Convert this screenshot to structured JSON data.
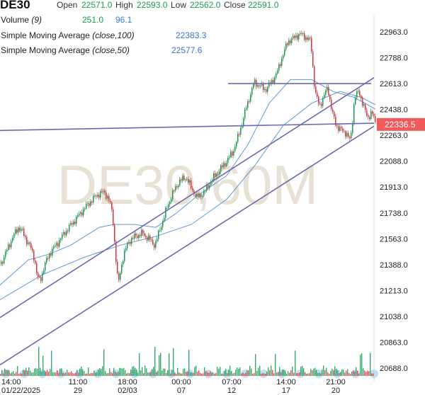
{
  "header": {
    "symbol": "DE30",
    "open_label": "Open",
    "open": "22571.0",
    "high_label": "High",
    "high": "22593.0",
    "low_label": "Low",
    "low": "22562.0",
    "close_label": "Close",
    "close": "22591.0",
    "volume_label": "Volume",
    "volume_param": "(9)",
    "volume_value": "251.0",
    "volume_ma": "96.1",
    "sma100_label": "Simple Moving Average",
    "sma100_param": "(close,100)",
    "sma100_value": "22383.3",
    "sma50_label": "Simple Moving Average",
    "sma50_param": "(close,50)",
    "sma50_value": "22577.6"
  },
  "watermark": "DE30,60M",
  "colors": {
    "up": "#1a9a55",
    "down": "#d9363e",
    "sma": "#5b9bd5",
    "trendline": "#6f68b0",
    "price_badge": "#f05a5a",
    "watermark": "#e8e2d6"
  },
  "chart_data": {
    "type": "candlestick",
    "y_axis": {
      "ticks": [
        "22963.0",
        "22788.0",
        "22613.0",
        "22438.0",
        "22263.0",
        "22088.0",
        "21913.0",
        "21738.0",
        "21563.0",
        "21388.0",
        "21213.0",
        "21038.0",
        "20863.0",
        "20688.0"
      ],
      "range": [
        20650,
        23040
      ]
    },
    "x_axis": {
      "ticks": [
        {
          "time": "14:00",
          "date": "01/22/2025"
        },
        {
          "time": "11:00",
          "date": "29"
        },
        {
          "time": "18:00",
          "date": "02/03"
        },
        {
          "time": "00:00",
          "date": "07"
        },
        {
          "time": "07:00",
          "date": "12"
        },
        {
          "time": "14:00",
          "date": "17"
        },
        {
          "time": "21:00",
          "date": "20"
        }
      ]
    },
    "current_price": "22336.5",
    "price_path_approx": [
      [
        0,
        21390
      ],
      [
        6,
        21450
      ],
      [
        12,
        21520
      ],
      [
        18,
        21580
      ],
      [
        25,
        21640
      ],
      [
        30,
        21620
      ],
      [
        36,
        21560
      ],
      [
        42,
        21510
      ],
      [
        48,
        21430
      ],
      [
        52,
        21300
      ],
      [
        56,
        21280
      ],
      [
        62,
        21380
      ],
      [
        70,
        21470
      ],
      [
        80,
        21530
      ],
      [
        90,
        21600
      ],
      [
        100,
        21660
      ],
      [
        112,
        21730
      ],
      [
        124,
        21800
      ],
      [
        136,
        21860
      ],
      [
        146,
        21880
      ],
      [
        152,
        21840
      ],
      [
        158,
        21740
      ],
      [
        162,
        21480
      ],
      [
        166,
        21250
      ],
      [
        172,
        21420
      ],
      [
        180,
        21540
      ],
      [
        190,
        21580
      ],
      [
        200,
        21600
      ],
      [
        210,
        21560
      ],
      [
        218,
        21520
      ],
      [
        226,
        21640
      ],
      [
        234,
        21760
      ],
      [
        242,
        21860
      ],
      [
        252,
        21950
      ],
      [
        262,
        21980
      ],
      [
        270,
        21900
      ],
      [
        278,
        21840
      ],
      [
        288,
        21880
      ],
      [
        298,
        21960
      ],
      [
        308,
        22020
      ],
      [
        318,
        22080
      ],
      [
        328,
        22150
      ],
      [
        336,
        22260
      ],
      [
        344,
        22400
      ],
      [
        352,
        22530
      ],
      [
        358,
        22620
      ],
      [
        366,
        22600
      ],
      [
        374,
        22570
      ],
      [
        382,
        22620
      ],
      [
        390,
        22680
      ],
      [
        398,
        22800
      ],
      [
        406,
        22900
      ],
      [
        414,
        22920
      ],
      [
        422,
        22950
      ],
      [
        430,
        22930
      ],
      [
        438,
        22900
      ],
      [
        444,
        22560
      ],
      [
        450,
        22460
      ],
      [
        456,
        22520
      ],
      [
        462,
        22590
      ],
      [
        468,
        22420
      ],
      [
        474,
        22330
      ],
      [
        480,
        22300
      ],
      [
        488,
        22280
      ],
      [
        494,
        22220
      ],
      [
        500,
        22520
      ],
      [
        506,
        22560
      ],
      [
        512,
        22470
      ],
      [
        518,
        22380
      ],
      [
        524,
        22420
      ],
      [
        530,
        22336
      ]
    ],
    "sma50_path_approx": [
      [
        0,
        21250
      ],
      [
        40,
        21420
      ],
      [
        70,
        21460
      ],
      [
        100,
        21520
      ],
      [
        140,
        21640
      ],
      [
        160,
        21660
      ],
      [
        190,
        21660
      ],
      [
        220,
        21640
      ],
      [
        250,
        21740
      ],
      [
        280,
        21860
      ],
      [
        320,
        21990
      ],
      [
        350,
        22200
      ],
      [
        380,
        22480
      ],
      [
        410,
        22640
      ],
      [
        440,
        22640
      ],
      [
        470,
        22560
      ],
      [
        500,
        22520
      ],
      [
        530,
        22440
      ]
    ],
    "sma100_path_approx": [
      [
        0,
        21150
      ],
      [
        60,
        21320
      ],
      [
        120,
        21440
      ],
      [
        170,
        21520
      ],
      [
        220,
        21580
      ],
      [
        270,
        21660
      ],
      [
        320,
        21830
      ],
      [
        360,
        22060
      ],
      [
        400,
        22330
      ],
      [
        440,
        22480
      ],
      [
        480,
        22560
      ],
      [
        510,
        22520
      ],
      [
        530,
        22470
      ]
    ],
    "trendlines": [
      {
        "from": [
          0,
          21030
        ],
        "to": [
          528,
          22653
        ]
      },
      {
        "from": [
          0,
          20710
        ],
        "to": [
          528,
          22325
        ]
      },
      {
        "from": [
          0,
          22296
        ],
        "to": [
          528,
          22345
        ]
      },
      {
        "from": [
          322,
          22613
        ],
        "to": [
          524,
          22613
        ]
      }
    ]
  }
}
